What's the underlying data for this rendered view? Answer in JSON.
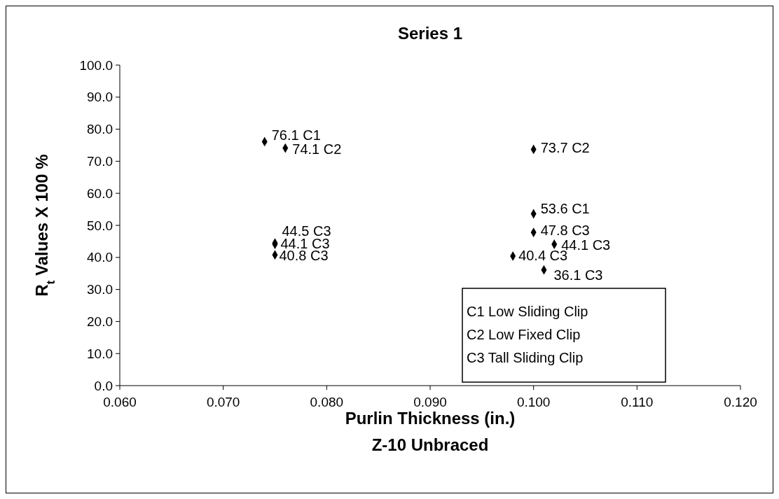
{
  "chart_data": {
    "type": "scatter",
    "title": "Series 1",
    "xlabel": "Purlin Thickness (in.)\nZ-10 Unbraced",
    "ylabel": "R$_{t}$ Values X 100 %",
    "x": [
      0.074,
      0.076,
      0.075,
      0.075,
      0.075,
      0.1,
      0.1,
      0.1,
      0.102,
      0.098,
      0.101
    ],
    "series": [
      {
        "color": "#000000",
        "values": [
          76.1,
          74.1,
          44.5,
          44.1,
          40.8,
          73.7,
          53.6,
          47.8,
          44.1,
          40.4,
          36.1
        ],
        "value_labels": [
          "76.1 C1",
          "74.1 C2",
          "44.5 C3",
          "44.1 C3",
          "40.8 C3",
          "73.7 C2",
          "53.6 C1",
          "47.8 C3",
          "44.1 C3",
          "40.4 C3",
          "36.1 C3"
        ]
      }
    ],
    "xlim": [
      0.06,
      0.12
    ],
    "xticks": [
      {
        "value": 0.06,
        "label": "0.060"
      },
      {
        "value": 0.07,
        "label": "0.070"
      },
      {
        "value": 0.08,
        "label": "0.080"
      },
      {
        "value": 0.09,
        "label": "0.090"
      },
      {
        "value": 0.1,
        "label": "0.100"
      },
      {
        "value": 0.11,
        "label": "0.110"
      },
      {
        "value": 0.12,
        "label": "0.120"
      }
    ],
    "ylim": [
      0,
      100
    ],
    "yticks": [
      {
        "value": 0,
        "label": "0.0"
      },
      {
        "value": 10,
        "label": "10.0"
      },
      {
        "value": 20,
        "label": "20.0"
      },
      {
        "value": 30,
        "label": "30.0"
      },
      {
        "value": 40,
        "label": "40.0"
      },
      {
        "value": 50,
        "label": "50.0"
      },
      {
        "value": 60,
        "label": "60.0"
      },
      {
        "value": 70,
        "label": "70.0"
      },
      {
        "value": 80,
        "label": "80.0"
      },
      {
        "value": 90,
        "label": "90.0"
      },
      {
        "value": 100,
        "label": "100.0"
      }
    ],
    "marker": "diamond",
    "grid": false,
    "annotations": [
      "C1 Low Sliding Clip",
      "C2 Low Fixed Clip",
      "C3 Tall Sliding Clip"
    ]
  }
}
